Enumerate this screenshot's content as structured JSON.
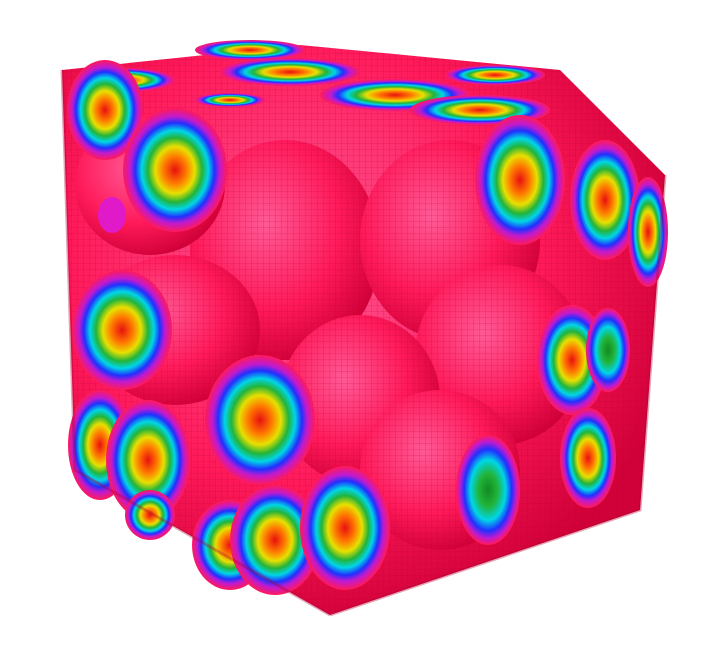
{
  "scene": {
    "subject": "voxel-rendered-cube-of-packed-spheres",
    "background": "#ffffff",
    "palette": {
      "surface": "#ff1a5a",
      "surface_dark": "#e0003c",
      "surface_light": "#ff4f8a",
      "ring_blue": "#2040ff",
      "ring_cyan": "#00d6e6",
      "ring_green": "#19b43a",
      "ring_yellow": "#e8e000",
      "ring_orange": "#ff9a00",
      "core_red": "#f01818",
      "magenta": "#e01ac8"
    }
  }
}
